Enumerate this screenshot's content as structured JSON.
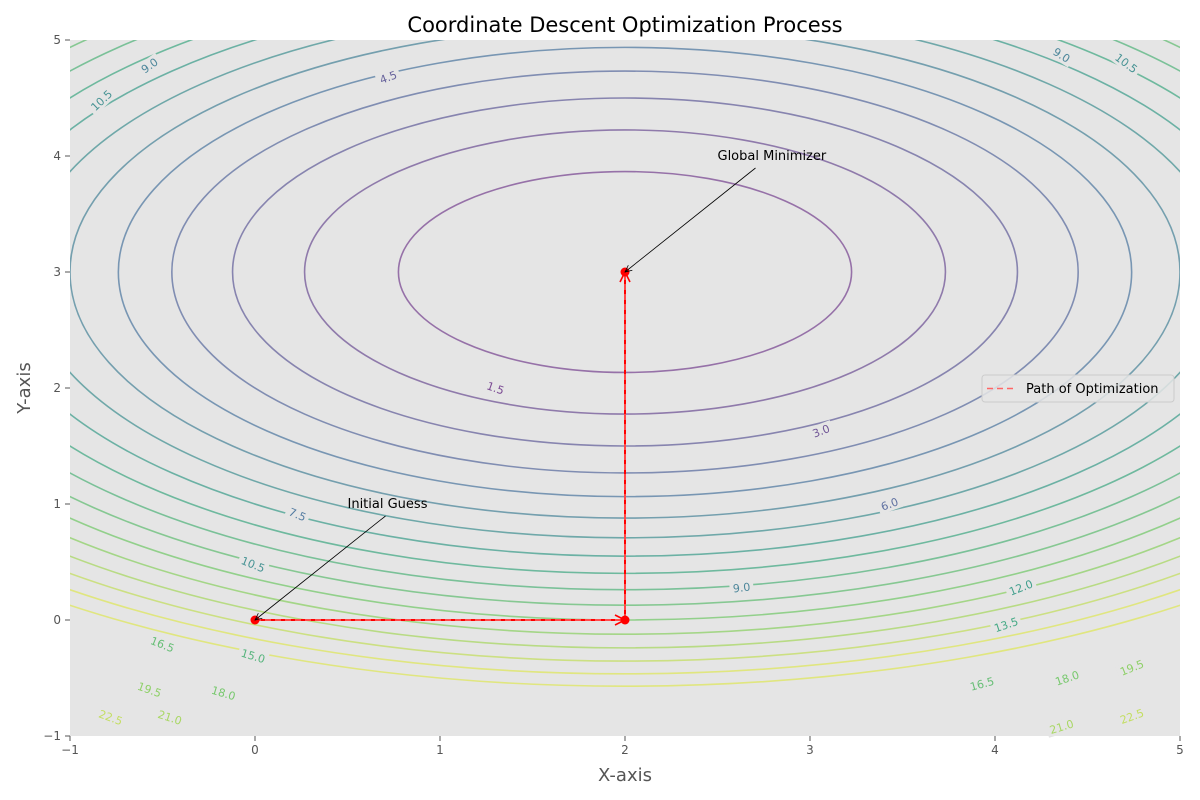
{
  "chart_data": {
    "type": "contour",
    "title": "Coordinate Descent Optimization Process",
    "xlabel": "X-axis",
    "ylabel": "Y-axis",
    "xlim": [
      -1,
      5
    ],
    "ylim": [
      -1,
      5
    ],
    "x_ticks": [
      "−1",
      "0",
      "1",
      "2",
      "3",
      "4",
      "5"
    ],
    "y_ticks": [
      "−1",
      "0",
      "1",
      "2",
      "3",
      "4",
      "5"
    ],
    "x_tick_values": [
      -1,
      0,
      1,
      2,
      3,
      4,
      5
    ],
    "y_tick_values": [
      -1,
      0,
      1,
      2,
      3,
      4,
      5
    ],
    "grid": false,
    "background_color": "#e5e5e5",
    "function": "(x-2)^2 + 2*(y-3)^2",
    "contour_levels": [
      1.5,
      3.0,
      4.5,
      6.0,
      7.5,
      9.0,
      10.5,
      12.0,
      13.5,
      15.0,
      16.5,
      18.0,
      19.5,
      21.0,
      22.5,
      24.0,
      25.5
    ],
    "contour_label_texts": [
      {
        "level": 1.5,
        "text": "1.5",
        "x": 1.3,
        "y": 2.0
      },
      {
        "level": 3.0,
        "text": "3.0",
        "x": 3.06,
        "y": 1.63
      },
      {
        "level": 4.5,
        "text": "4.5",
        "x": 0.72,
        "y": 4.68
      },
      {
        "level": 6.0,
        "text": "6.0",
        "x": 3.43,
        "y": 1.0
      },
      {
        "level": 7.5,
        "text": "7.5",
        "x": 0.23,
        "y": 0.91
      },
      {
        "level": 9.0,
        "text": "9.0",
        "x": 2.63,
        "y": 0.28
      },
      {
        "level": 9.0,
        "text": "9.0",
        "x": -0.57,
        "y": 4.78
      },
      {
        "level": 9.0,
        "text": "9.0",
        "x": 4.36,
        "y": 4.87
      },
      {
        "level": 10.5,
        "text": "10.5",
        "x": -0.01,
        "y": 0.48
      },
      {
        "level": 10.5,
        "text": "10.5",
        "x": -0.83,
        "y": 4.48
      },
      {
        "level": 10.5,
        "text": "10.5",
        "x": 4.71,
        "y": 4.8
      },
      {
        "level": 12.0,
        "text": "12.0",
        "x": 4.14,
        "y": 0.28
      },
      {
        "level": 13.5,
        "text": "13.5",
        "x": 4.06,
        "y": -0.04
      },
      {
        "level": 15.0,
        "text": "15.0",
        "x": -0.01,
        "y": -0.31
      },
      {
        "level": 16.5,
        "text": "16.5",
        "x": -0.5,
        "y": -0.21
      },
      {
        "level": 16.5,
        "text": "16.5",
        "x": 3.93,
        "y": -0.55
      },
      {
        "level": 18.0,
        "text": "18.0",
        "x": -0.17,
        "y": -0.63
      },
      {
        "level": 18.0,
        "text": "18.0",
        "x": 4.39,
        "y": -0.5
      },
      {
        "level": 19.5,
        "text": "19.5",
        "x": -0.57,
        "y": -0.6
      },
      {
        "level": 19.5,
        "text": "19.5",
        "x": 4.74,
        "y": -0.41
      },
      {
        "level": 21.0,
        "text": "21.0",
        "x": -0.46,
        "y": -0.84
      },
      {
        "level": 21.0,
        "text": "21.0",
        "x": 4.36,
        "y": -0.92
      },
      {
        "level": 22.5,
        "text": "22.5",
        "x": -0.78,
        "y": -0.84
      },
      {
        "level": 22.5,
        "text": "22.5",
        "x": 4.74,
        "y": -0.83
      }
    ],
    "colormap_stops": [
      "#7b4a93",
      "#5578a3",
      "#3ea58a",
      "#7acb6a",
      "#dde55c"
    ],
    "path": {
      "name": "Path of Optimization",
      "color": "#ff0000",
      "points": [
        [
          0,
          0
        ],
        [
          2,
          0
        ],
        [
          2,
          3
        ]
      ]
    },
    "annotations": [
      {
        "text": "Initial Guess",
        "x": 0.5,
        "y": 1.0,
        "target": [
          0,
          0
        ]
      },
      {
        "text": "Global Minimizer",
        "x": 2.5,
        "y": 4.0,
        "target": [
          2,
          3
        ]
      }
    ],
    "legend": {
      "placement": "center-right",
      "entries": [
        "Path of Optimization"
      ]
    }
  }
}
